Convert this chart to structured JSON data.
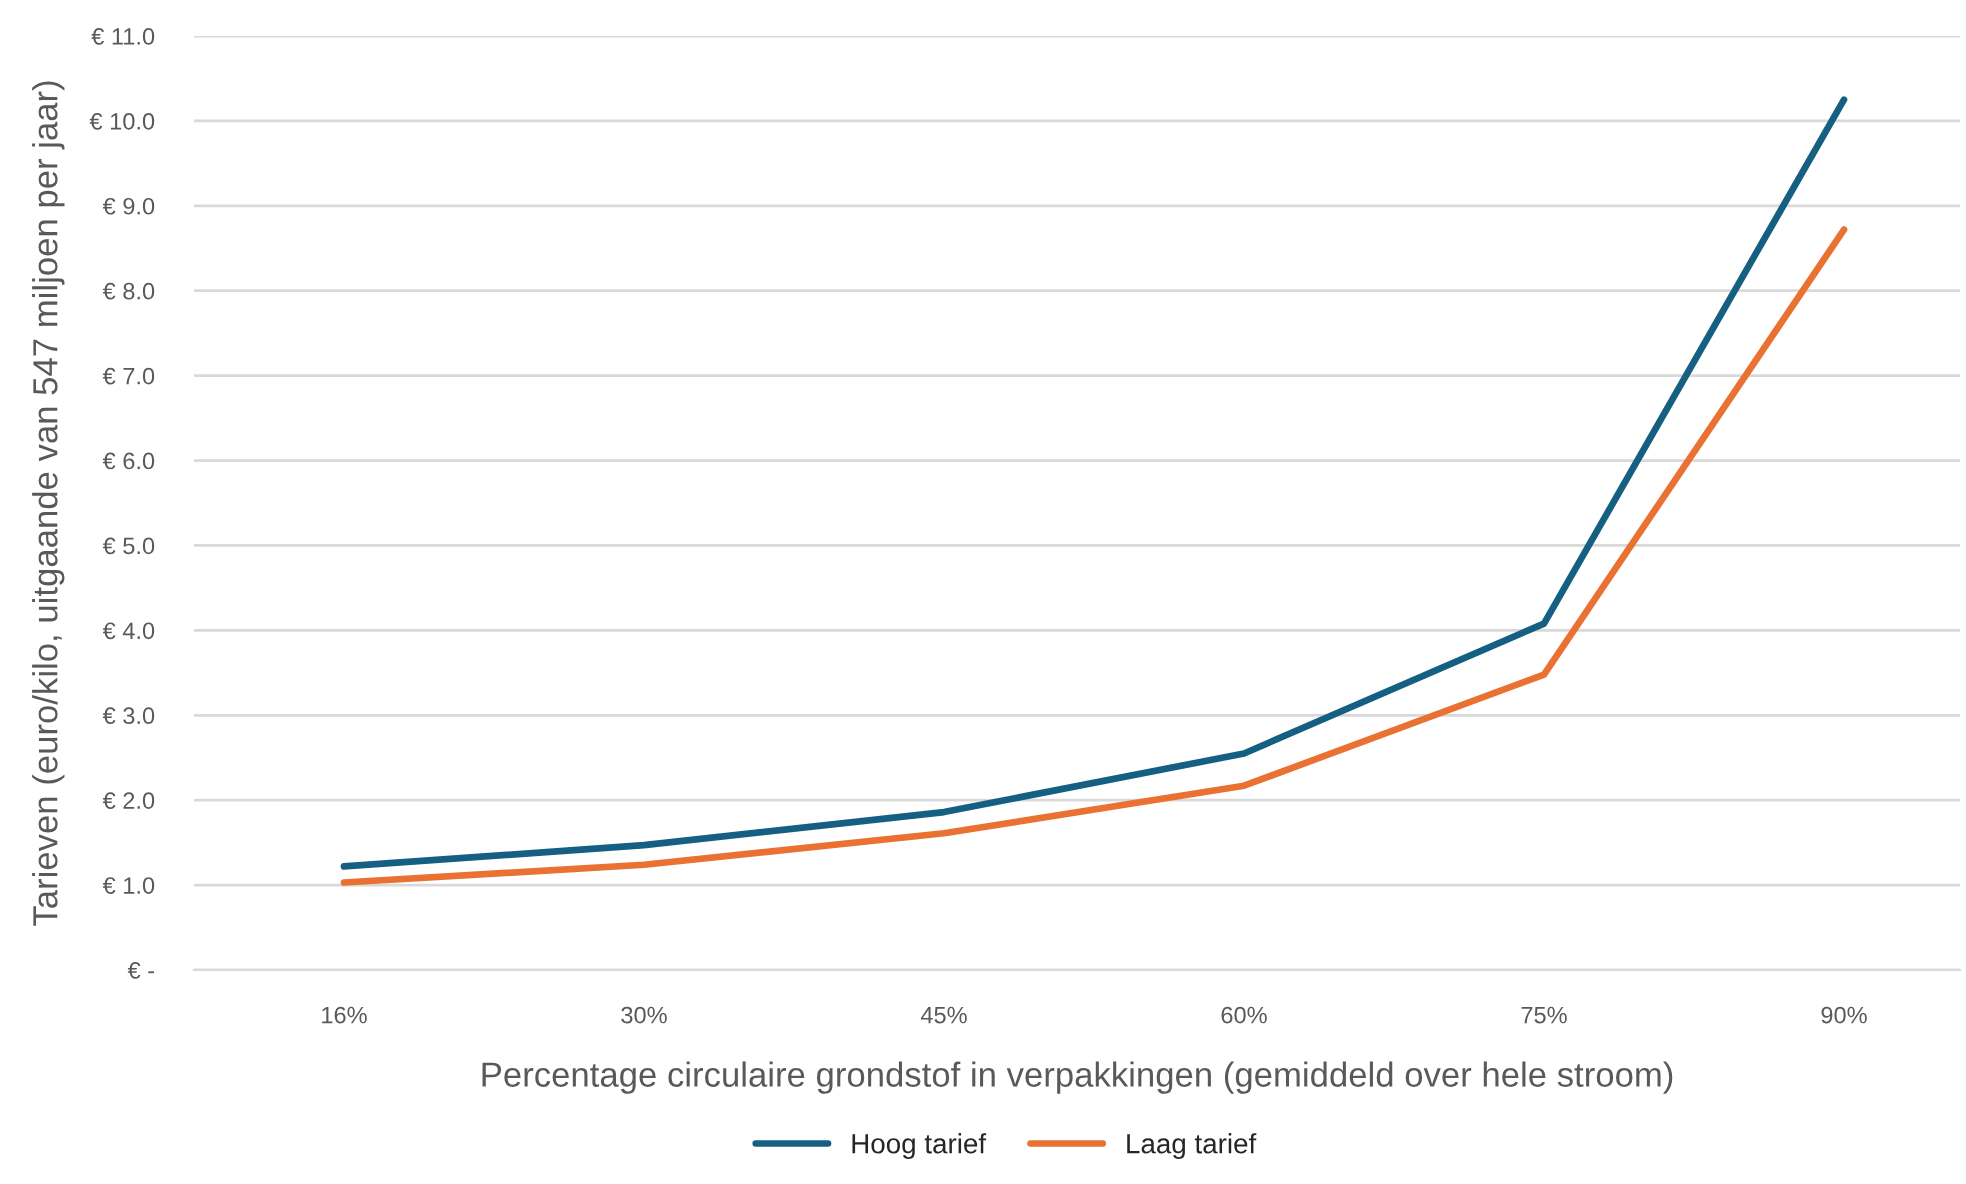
{
  "chart_data": {
    "type": "line",
    "categories": [
      "16%",
      "30%",
      "45%",
      "60%",
      "75%",
      "90%"
    ],
    "series": [
      {
        "name": "Hoog tarief",
        "color": "#156082",
        "values": [
          1.22,
          1.47,
          1.86,
          2.55,
          4.08,
          10.25
        ]
      },
      {
        "name": "Laag tarief",
        "color": "#e97132",
        "values": [
          1.03,
          1.24,
          1.61,
          2.17,
          3.48,
          8.72
        ]
      }
    ],
    "xlabel": "Percentage circulaire grondstof in verpakkingen (gemiddeld over hele stroom)",
    "ylabel": "Tarieven (euro/kilo, uitgaande van 547 miljoen per jaar)",
    "ylim": [
      0,
      11
    ],
    "yticks": [
      {
        "value": 0,
        "label": "€ -"
      },
      {
        "value": 1,
        "label": "€ 1.0"
      },
      {
        "value": 2,
        "label": "€ 2.0"
      },
      {
        "value": 3,
        "label": "€ 3.0"
      },
      {
        "value": 4,
        "label": "€ 4.0"
      },
      {
        "value": 5,
        "label": "€ 5.0"
      },
      {
        "value": 6,
        "label": "€ 6.0"
      },
      {
        "value": 7,
        "label": "€ 7.0"
      },
      {
        "value": 8,
        "label": "€ 8.0"
      },
      {
        "value": 9,
        "label": "€ 9.0"
      },
      {
        "value": 10,
        "label": "€ 10.0"
      },
      {
        "value": 11,
        "label": "€ 11.0"
      }
    ],
    "grid": "y",
    "legend": "bottom",
    "marker": "none",
    "line_style": "solid"
  }
}
